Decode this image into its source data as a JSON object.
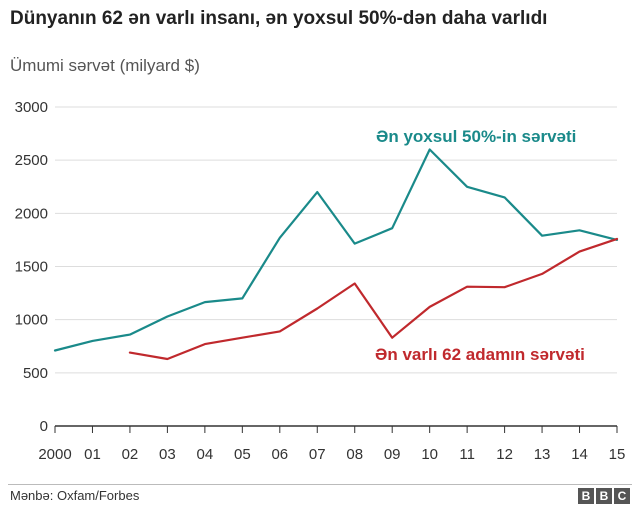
{
  "title": "Dünyanın 62 ən varlı insanı, ən yoxsul 50%-dən daha varlıdı",
  "subtitle": "Ümumi sərvət (milyard $)",
  "source": "Mənbə: Oxfam/Forbes",
  "logo": [
    "B",
    "B",
    "C"
  ],
  "colors": {
    "teal": "#1a8a8a",
    "red": "#c0292d",
    "grid": "#dddddd",
    "axis": "#333333"
  },
  "chart_data": {
    "type": "line",
    "x": [
      "2000",
      "01",
      "02",
      "03",
      "04",
      "05",
      "06",
      "07",
      "08",
      "09",
      "10",
      "11",
      "12",
      "13",
      "14",
      "15"
    ],
    "ylim": [
      0,
      3000
    ],
    "yticks": [
      0,
      500,
      1000,
      1500,
      2000,
      2500,
      3000
    ],
    "grid": true,
    "series": [
      {
        "name": "Ən yoxsul 50%-in sərvəti",
        "color": "#1a8a8a",
        "values": [
          710,
          800,
          860,
          1030,
          1165,
          1200,
          1770,
          2200,
          1715,
          1860,
          2600,
          2250,
          2150,
          1790,
          1840,
          1750
        ]
      },
      {
        "name": "Ən varlı 62 adamın sərvəti",
        "color": "#c0292d",
        "values": [
          null,
          null,
          690,
          630,
          770,
          830,
          890,
          1105,
          1340,
          830,
          1120,
          1310,
          1305,
          1430,
          1640,
          1760
        ]
      }
    ]
  }
}
